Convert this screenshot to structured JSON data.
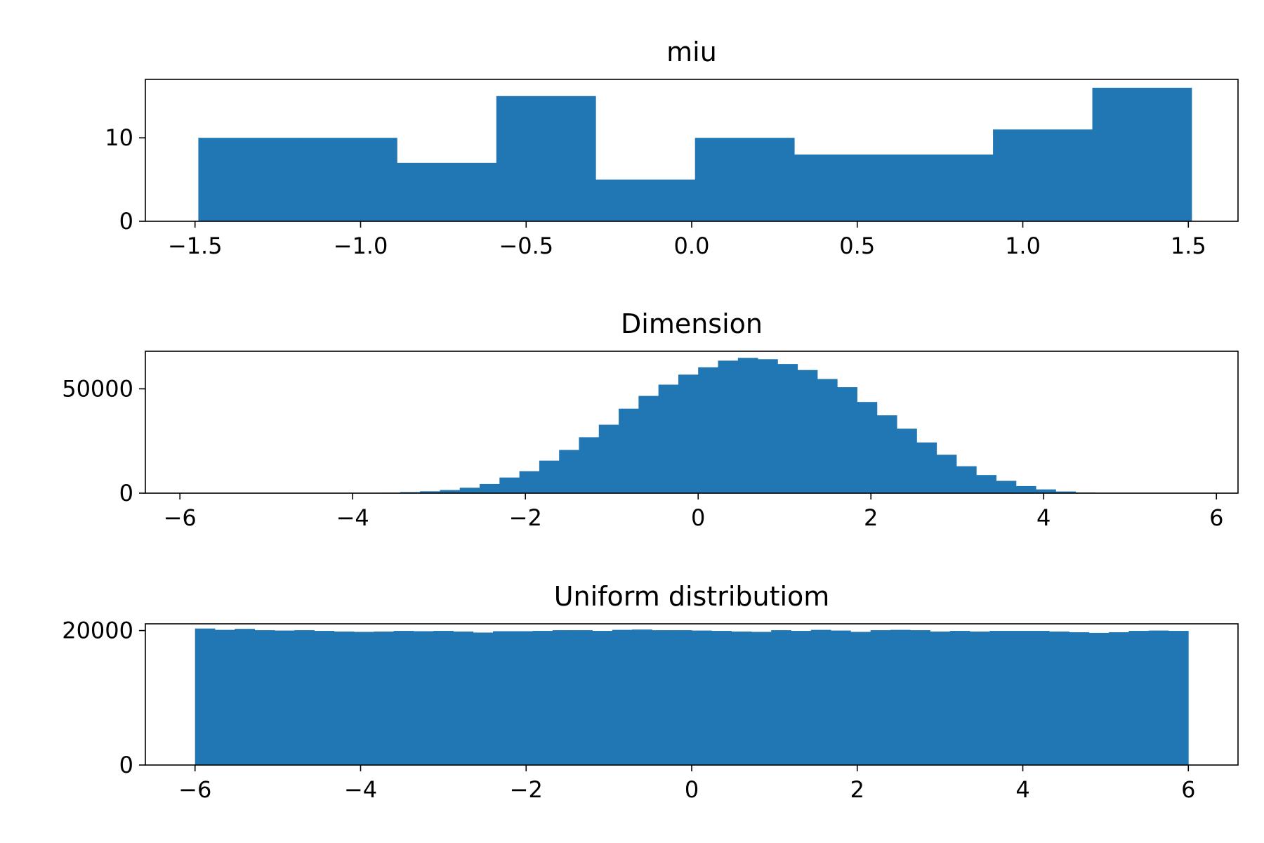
{
  "chart_data": [
    {
      "type": "bar",
      "title": "miu",
      "xlim": [
        -1.65,
        1.65
      ],
      "ylim": [
        0,
        17
      ],
      "xticks": [
        -1.5,
        -1.0,
        -0.5,
        0.0,
        0.5,
        1.0,
        1.5
      ],
      "xtick_labels": [
        "−1.5",
        "−1.0",
        "−0.5",
        "0.0",
        "0.5",
        "1.0",
        "1.5"
      ],
      "yticks": [
        0,
        10
      ],
      "ytick_labels": [
        "0",
        "10"
      ],
      "color": "#2077b4",
      "bin_edges": [
        -1.49,
        -1.19,
        -0.89,
        -0.59,
        -0.29,
        0.01,
        0.31,
        0.61,
        0.91,
        1.21,
        1.51
      ],
      "values": [
        10,
        10,
        7,
        15,
        5,
        10,
        8,
        8,
        11,
        16
      ]
    },
    {
      "type": "bar",
      "title": "Dimension",
      "xlim": [
        -6.4,
        6.25
      ],
      "ylim": [
        0,
        68000
      ],
      "xticks": [
        -6,
        -4,
        -2,
        0,
        2,
        4,
        6
      ],
      "xtick_labels": [
        "−6",
        "−4",
        "−2",
        "0",
        "2",
        "4",
        "6"
      ],
      "yticks": [
        0,
        50000
      ],
      "ytick_labels": [
        "0",
        "50000"
      ],
      "color": "#2077b4",
      "bin_start": -5.75,
      "bin_width": 0.23,
      "values": [
        0,
        0,
        0,
        0,
        0,
        0,
        0,
        0,
        0,
        200,
        500,
        900,
        1500,
        2600,
        4400,
        7500,
        10500,
        15600,
        20700,
        26800,
        32800,
        40500,
        46600,
        52000,
        56800,
        60300,
        63500,
        64800,
        64200,
        61900,
        59000,
        54700,
        50800,
        43700,
        37300,
        30900,
        24300,
        18400,
        12900,
        8700,
        5900,
        3400,
        1800,
        800,
        300,
        0,
        0,
        0,
        0,
        0
      ]
    },
    {
      "type": "bar",
      "title": "Uniform distributiom",
      "xlim": [
        -6.6,
        6.6
      ],
      "ylim": [
        0,
        21000
      ],
      "xticks": [
        -6,
        -4,
        -2,
        0,
        2,
        4,
        6
      ],
      "xtick_labels": [
        "−6",
        "−4",
        "−2",
        "0",
        "2",
        "4",
        "6"
      ],
      "yticks": [
        0,
        20000
      ],
      "ytick_labels": [
        "0",
        "20000"
      ],
      "color": "#2077b4",
      "bin_start": -6,
      "bin_width": 0.24,
      "values": [
        20300,
        20100,
        20250,
        20050,
        20000,
        20050,
        19950,
        19850,
        19800,
        19850,
        19950,
        19900,
        19950,
        19850,
        19700,
        19900,
        19900,
        19950,
        20050,
        20050,
        19950,
        20100,
        20150,
        20050,
        20050,
        20000,
        19950,
        19850,
        19800,
        20050,
        19950,
        20100,
        20000,
        19800,
        20050,
        20100,
        20050,
        19850,
        19950,
        19850,
        19950,
        19950,
        19950,
        19850,
        19750,
        19650,
        19750,
        19950,
        20000,
        19950
      ]
    }
  ]
}
